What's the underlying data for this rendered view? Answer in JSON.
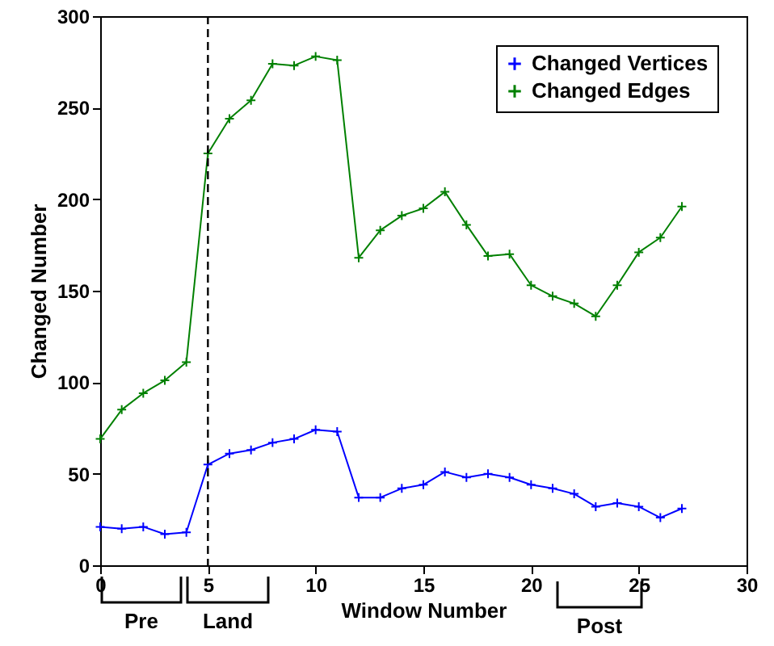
{
  "chart_data": {
    "type": "line",
    "xlabel": "Window Number",
    "ylabel": "Changed Number",
    "x": [
      0,
      1,
      2,
      3,
      4,
      5,
      6,
      7,
      8,
      9,
      10,
      11,
      12,
      13,
      14,
      15,
      16,
      17,
      18,
      19,
      20,
      21,
      22,
      23,
      24,
      25,
      26,
      27
    ],
    "series": [
      {
        "name": "Changed Vertices",
        "color": "#0000ff",
        "values": [
          21,
          20,
          21,
          17,
          18,
          55,
          61,
          63,
          67,
          69,
          74,
          73,
          37,
          37,
          42,
          44,
          51,
          48,
          50,
          48,
          44,
          42,
          39,
          32,
          34,
          32,
          26,
          31
        ]
      },
      {
        "name": "Changed Edges",
        "color": "#008000",
        "values": [
          69,
          85,
          94,
          101,
          111,
          225,
          244,
          254,
          274,
          273,
          278,
          276,
          168,
          183,
          191,
          195,
          204,
          186,
          169,
          170,
          153,
          147,
          143,
          136,
          153,
          171,
          179,
          196
        ]
      }
    ],
    "xlim": [
      0,
      30
    ],
    "xticks": [
      0,
      5,
      10,
      15,
      20,
      25,
      30
    ],
    "ylim": [
      0,
      300
    ],
    "yticks": [
      0,
      50,
      100,
      150,
      200,
      250,
      300
    ],
    "ref_lines": [
      {
        "axis": "x",
        "value": 5,
        "color": "#000000",
        "line_style": "dashed"
      }
    ],
    "annotations": [
      "Pre",
      "Land",
      "Post"
    ],
    "grid": false,
    "legend": "top right",
    "marker": "cross",
    "line_style": "solid"
  }
}
